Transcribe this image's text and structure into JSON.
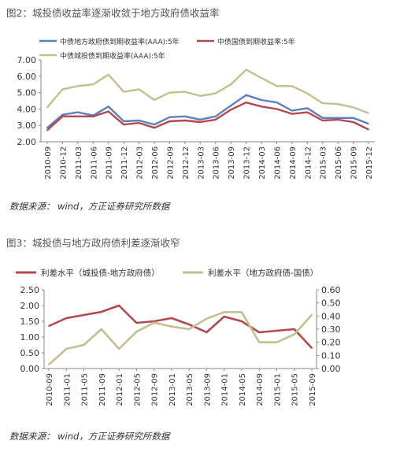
{
  "figure1": {
    "title": "图2：城投债收益率逐渐收敛于地方政府债收益率",
    "source": "数据来源： wind，方正证券研究所数据"
  },
  "figure2": {
    "title": "图3：城投债与地方政府债利差逐渐收窄",
    "source": "数据来源： wind，方正证券研究所数据"
  },
  "chart_data": [
    {
      "type": "line",
      "title": "图2：城投债收益率逐渐收敛于地方政府债收益率",
      "xlabel": "",
      "ylabel": "",
      "ylim": [
        2.0,
        7.0
      ],
      "yticks": [
        "7.00",
        "6.00",
        "5.00",
        "4.00",
        "3.00",
        "2.00"
      ],
      "grid": false,
      "legend_position": "top",
      "x": [
        "2010-09",
        "2010-12",
        "2011-03",
        "2011-06",
        "2011-09",
        "2011-12",
        "2012-03",
        "2012-06",
        "2012-09",
        "2012-12",
        "2013-03",
        "2013-06",
        "2013-09",
        "2013-12",
        "2014-03",
        "2014-06",
        "2014-09",
        "2014-12",
        "2015-03",
        "2015-06",
        "2015-09",
        "2015-12"
      ],
      "series": [
        {
          "name": "中债地方政府债到期收益率(AAA):5年",
          "color": "#5b7fbf",
          "values": [
            2.85,
            3.65,
            3.8,
            3.6,
            4.15,
            3.25,
            3.3,
            3.05,
            3.5,
            3.55,
            3.35,
            3.55,
            4.2,
            4.85,
            4.55,
            4.4,
            3.9,
            4.05,
            3.45,
            3.45,
            3.45,
            3.1
          ]
        },
        {
          "name": "中债国债到期收益率:5年",
          "color": "#b5474f",
          "values": [
            2.7,
            3.55,
            3.55,
            3.55,
            3.85,
            3.05,
            3.15,
            2.85,
            3.25,
            3.3,
            3.2,
            3.35,
            3.95,
            4.4,
            4.15,
            4.0,
            3.7,
            3.8,
            3.3,
            3.35,
            3.2,
            2.75
          ]
        },
        {
          "name": "中债城投债到期收益率(AAA):5年",
          "color": "#c3bf8e",
          "values": [
            4.1,
            5.2,
            5.4,
            5.5,
            6.1,
            5.05,
            5.2,
            4.55,
            5.0,
            5.05,
            4.8,
            4.95,
            5.5,
            6.4,
            5.9,
            5.4,
            5.4,
            4.95,
            4.35,
            4.3,
            4.1,
            3.75
          ]
        }
      ]
    },
    {
      "type": "line",
      "title": "图3：城投债与地方政府债利差逐渐收窄",
      "xlabel": "",
      "ylabel": "",
      "ylim": [
        0.0,
        2.5
      ],
      "y2lim": [
        0.0,
        0.6
      ],
      "yticks": [
        "2.50",
        "2.00",
        "1.50",
        "1.00",
        "0.50",
        "0.00"
      ],
      "y2ticks": [
        "0.60",
        "0.50",
        "0.40",
        "0.30",
        "0.20",
        "0.10",
        "0.00"
      ],
      "grid": false,
      "legend_position": "top",
      "x": [
        "2010-09",
        "2011-01",
        "2011-05",
        "2011-09",
        "2012-01",
        "2012-05",
        "2012-09",
        "2013-01",
        "2013-05",
        "2013-09",
        "2014-01",
        "2014-05",
        "2014-09",
        "2015-01",
        "2015-05",
        "2015-09"
      ],
      "series": [
        {
          "name": "利差水平（城投债-地方政府债）",
          "color": "#b5474f",
          "axis": "left",
          "values": [
            1.35,
            1.6,
            1.7,
            1.8,
            2.0,
            1.45,
            1.5,
            1.6,
            1.4,
            1.15,
            1.65,
            1.5,
            1.15,
            1.2,
            1.25,
            0.65
          ]
        },
        {
          "name": "利差水平（地方政府债-国债）",
          "color": "#c3bf8e",
          "axis": "right",
          "values": [
            0.03,
            0.15,
            0.18,
            0.3,
            0.15,
            0.28,
            0.35,
            0.32,
            0.3,
            0.38,
            0.43,
            0.43,
            0.2,
            0.2,
            0.26,
            0.41
          ]
        }
      ]
    }
  ]
}
